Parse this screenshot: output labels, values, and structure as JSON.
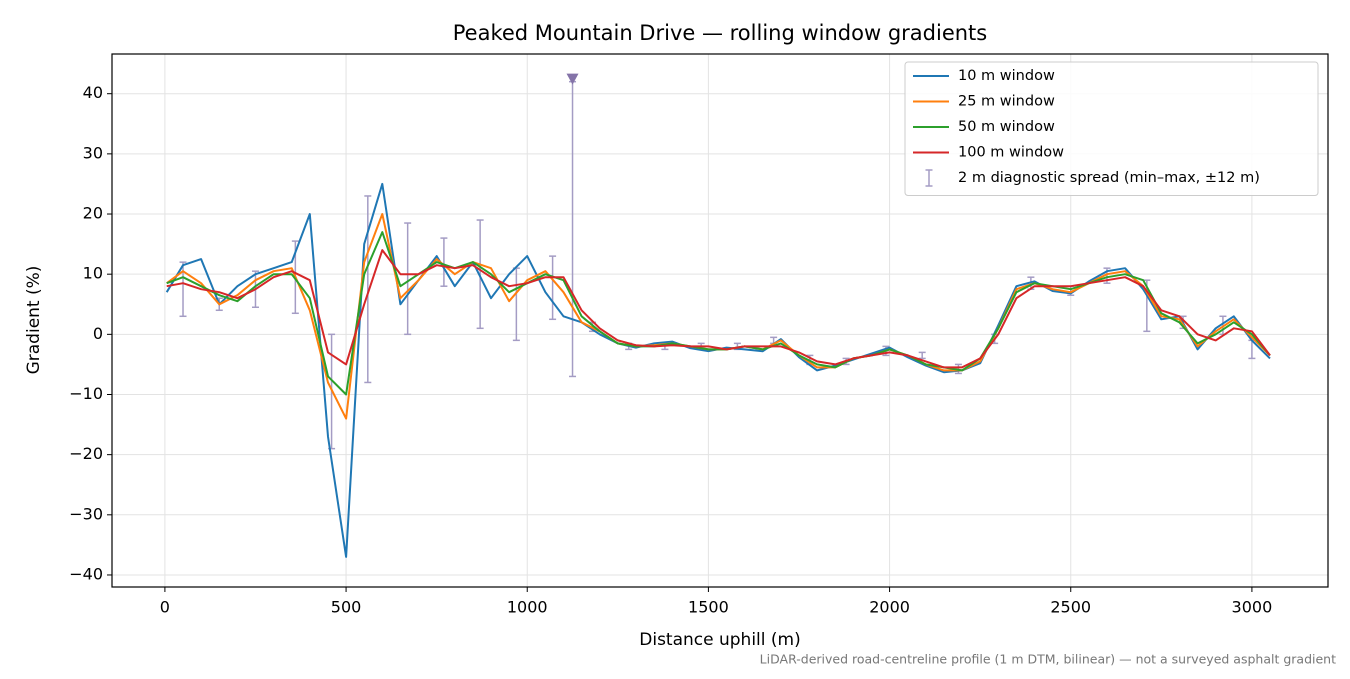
{
  "chart_data": {
    "type": "line",
    "title": "Peaked Mountain Drive — rolling window gradients",
    "xlabel": "Distance uphill (m)",
    "ylabel": "Gradient (%)",
    "footnote": "LiDAR-derived road-centreline profile (1 m DTM, bilinear) — not a surveyed asphalt gradient",
    "x": [
      5,
      50,
      100,
      150,
      200,
      250,
      300,
      350,
      400,
      450,
      500,
      550,
      600,
      650,
      700,
      750,
      800,
      850,
      900,
      950,
      1000,
      1050,
      1100,
      1150,
      1200,
      1250,
      1300,
      1350,
      1400,
      1450,
      1500,
      1550,
      1600,
      1650,
      1700,
      1750,
      1800,
      1850,
      1900,
      1950,
      2000,
      2050,
      2100,
      2150,
      2200,
      2250,
      2300,
      2350,
      2400,
      2450,
      2500,
      2550,
      2600,
      2650,
      2700,
      2750,
      2800,
      2850,
      2900,
      2950,
      3000,
      3050
    ],
    "series": [
      {
        "name": "10 m window",
        "color": "#1f77b4",
        "values": [
          7,
          11.5,
          12.5,
          5,
          8,
          10,
          11,
          12,
          20,
          -17,
          -37,
          15,
          25,
          5,
          9,
          13,
          8,
          12,
          6,
          10,
          13,
          7,
          3,
          2,
          0,
          -1.5,
          -2.2,
          -1.5,
          -1.2,
          -2.3,
          -2.8,
          -2.2,
          -2.5,
          -2.8,
          -0.8,
          -3.8,
          -6,
          -5.2,
          -4.2,
          -3.2,
          -2.2,
          -3.8,
          -5.2,
          -6.3,
          -6,
          -4.8,
          1.5,
          8,
          8.8,
          7.2,
          6.8,
          8.8,
          10.5,
          11,
          7.5,
          2.5,
          3,
          -2.5,
          1,
          3,
          -1,
          -4
        ]
      },
      {
        "name": "25 m window",
        "color": "#ff7f0e",
        "values": [
          8.5,
          10.5,
          8.5,
          5,
          6.5,
          9,
          10.5,
          11,
          4,
          -8,
          -14,
          12,
          20,
          6,
          9,
          12.5,
          10,
          12,
          11,
          5.5,
          9,
          10.5,
          7,
          2,
          0.5,
          -1.5,
          -2,
          -1.8,
          -1.5,
          -2,
          -2.5,
          -2.5,
          -2,
          -2.5,
          -1,
          -3.5,
          -5.5,
          -5.5,
          -4,
          -3.5,
          -2.5,
          -3.5,
          -5,
          -6,
          -6,
          -4.5,
          1,
          7.5,
          8.5,
          7.5,
          7,
          8.5,
          10,
          10.5,
          8,
          3,
          2.5,
          -2,
          0.5,
          2.5,
          -0.5,
          -3.5
        ]
      },
      {
        "name": "50 m window",
        "color": "#2ca02c",
        "values": [
          8.5,
          9.5,
          8,
          6.5,
          5.5,
          8,
          10,
          10,
          6,
          -7,
          -10,
          10,
          17,
          8,
          10,
          12,
          11,
          12,
          10,
          7,
          8.5,
          10,
          9,
          3,
          0.5,
          -1.5,
          -2,
          -2,
          -1.5,
          -2,
          -2.5,
          -2.5,
          -2,
          -2.5,
          -1.5,
          -3.5,
          -5,
          -5.5,
          -4,
          -3.5,
          -2.5,
          -3.5,
          -5,
          -5.5,
          -6,
          -4,
          1,
          7,
          8.5,
          8,
          7.5,
          8.5,
          9.5,
          10,
          9,
          3.5,
          2,
          -1.5,
          0,
          2,
          0,
          -3.5
        ]
      },
      {
        "name": "100 m window",
        "color": "#d62728",
        "values": [
          8,
          8.5,
          7.5,
          7,
          6,
          7.5,
          9.5,
          10.5,
          9,
          -3,
          -5,
          5,
          14,
          10,
          10,
          11.5,
          11,
          11.5,
          9.5,
          8,
          8.5,
          9.5,
          9.5,
          4,
          1,
          -1,
          -1.8,
          -2,
          -1.8,
          -2,
          -2,
          -2.5,
          -2,
          -2,
          -2,
          -3,
          -4.5,
          -5,
          -4,
          -3.5,
          -3,
          -3.5,
          -4.5,
          -5.5,
          -5.5,
          -4,
          0,
          6,
          8,
          8,
          8,
          8.5,
          9,
          9.5,
          8,
          4,
          3,
          0,
          -1,
          1,
          0.5,
          -3.5
        ]
      }
    ],
    "spread": {
      "name": "2 m diagnostic spread (min–max, ±12 m)",
      "color": "#a49cc4",
      "x": [
        50,
        150,
        250,
        360,
        460,
        560,
        670,
        770,
        870,
        970,
        1070,
        1125,
        1180,
        1280,
        1380,
        1480,
        1580,
        1680,
        1780,
        1880,
        1990,
        2090,
        2190,
        2290,
        2390,
        2500,
        2600,
        2710,
        2810,
        2920,
        3000
      ],
      "min": [
        3,
        4,
        4.5,
        3.5,
        -19,
        -8,
        0,
        8,
        1,
        -1,
        2.5,
        -7,
        0.5,
        -2.5,
        -2.5,
        -2.5,
        -2.5,
        -1.5,
        -5,
        -5,
        -3.5,
        -4,
        -6.5,
        -1.5,
        7.5,
        6.5,
        8.5,
        0.5,
        1,
        0,
        -4
      ],
      "max": [
        12,
        6,
        10.5,
        15.5,
        0,
        23,
        18.5,
        16,
        19,
        11,
        13,
        42,
        2,
        -1.5,
        -1.5,
        -1.5,
        -1.5,
        -0.5,
        -3.5,
        -4,
        -2,
        -3,
        -5,
        0,
        9.5,
        8,
        11,
        9,
        3,
        3,
        -1
      ]
    },
    "clipped_marker": {
      "x": 1125,
      "y": 42.5,
      "color": "#8473a8"
    },
    "xlim": [
      -146,
      3210
    ],
    "ylim": [
      -42,
      46.6
    ],
    "xticks": [
      0,
      500,
      1000,
      1500,
      2000,
      2500,
      3000
    ],
    "yticks": [
      {
        "value": -40,
        "label": "−40"
      },
      {
        "value": -30,
        "label": "−30"
      },
      {
        "value": -20,
        "label": "−20"
      },
      {
        "value": -10,
        "label": "−10"
      },
      0,
      10,
      20,
      30,
      40
    ],
    "grid": true,
    "legend": "upper right"
  }
}
